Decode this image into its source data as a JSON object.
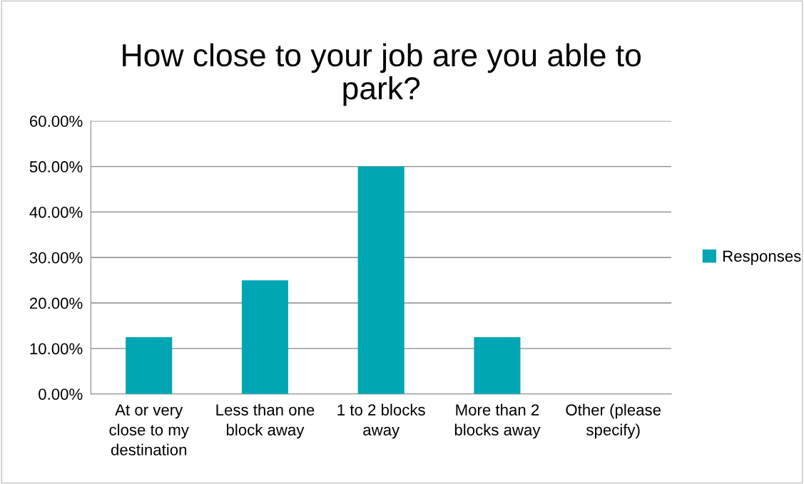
{
  "chart_data": {
    "type": "bar",
    "title": "How close to your job are you able to\npark?",
    "categories": [
      "At or very\nclose to my\ndestination",
      "Less than one\nblock away",
      "1 to 2 blocks\naway",
      "More than 2\nblocks away",
      "Other (please\nspecify)"
    ],
    "series": [
      {
        "name": "Responses",
        "color": "#00a6b4",
        "values": [
          12.5,
          25,
          50,
          12.5,
          0
        ]
      }
    ],
    "ylim": [
      0,
      60
    ],
    "yticks": [
      {
        "value": 0,
        "label": "0.00%"
      },
      {
        "value": 10,
        "label": "10.00%"
      },
      {
        "value": 20,
        "label": "20.00%"
      },
      {
        "value": 30,
        "label": "30.00%"
      },
      {
        "value": 40,
        "label": "40.00%"
      },
      {
        "value": 50,
        "label": "50.00%"
      },
      {
        "value": 60,
        "label": "60.00%"
      }
    ],
    "grid": "y",
    "legend": "right"
  }
}
